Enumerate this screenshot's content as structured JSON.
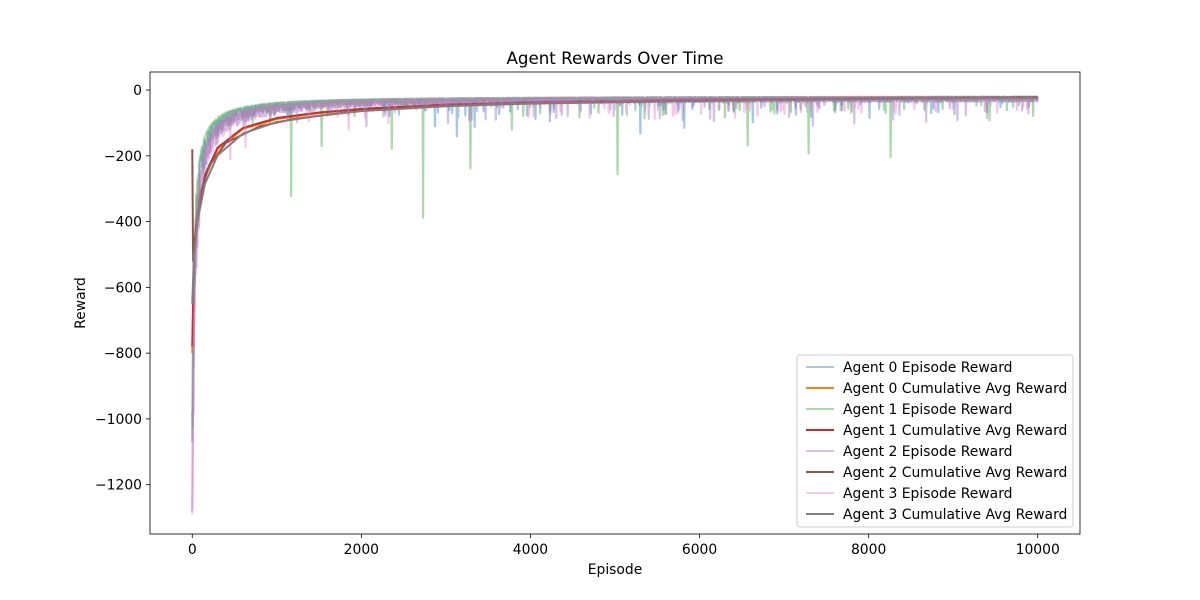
{
  "chart_data": {
    "type": "line",
    "title": "Agent Rewards Over Time",
    "xlabel": "Episode",
    "ylabel": "Reward",
    "xlim": [
      -500,
      10500
    ],
    "ylim": [
      -1350,
      55
    ],
    "xticks": [
      0,
      2000,
      4000,
      6000,
      8000,
      10000
    ],
    "yticks": [
      0,
      -200,
      -400,
      -600,
      -800,
      -1000,
      -1200
    ],
    "xtick_labels": [
      "0",
      "2000",
      "4000",
      "6000",
      "8000",
      "10000"
    ],
    "ytick_labels": [
      "0",
      "−200",
      "−400",
      "−600",
      "−800",
      "−1000",
      "−1200"
    ],
    "legend_position": "lower right",
    "episodes": 10000,
    "series": [
      {
        "name": "Agent 0 Episode Reward",
        "color": "#1f77b4",
        "alpha": 0.4,
        "kind": "episode",
        "start": -1070,
        "plateau": -18,
        "spikes": [
          [
            1830,
            -65
          ],
          [
            2870,
            -110
          ],
          [
            3130,
            -140
          ],
          [
            3340,
            -112
          ],
          [
            4060,
            -88
          ],
          [
            4230,
            -95
          ],
          [
            5300,
            -132
          ],
          [
            5820,
            -115
          ],
          [
            6630,
            -98
          ],
          [
            7140,
            -75
          ],
          [
            8010,
            -85
          ],
          [
            8740,
            -70
          ],
          [
            9560,
            -52
          ]
        ]
      },
      {
        "name": "Agent 0 Cumulative Avg Reward",
        "color": "#ff7f0e",
        "alpha": 1,
        "kind": "cumulative",
        "points": [
          [
            0,
            -800
          ],
          [
            20,
            -520
          ],
          [
            60,
            -390
          ],
          [
            150,
            -265
          ],
          [
            300,
            -180
          ],
          [
            600,
            -118
          ],
          [
            1000,
            -88
          ],
          [
            1500,
            -70
          ],
          [
            2000,
            -58
          ],
          [
            3000,
            -45
          ],
          [
            4000,
            -38
          ],
          [
            6000,
            -30
          ],
          [
            8000,
            -25
          ],
          [
            10000,
            -22
          ]
        ]
      },
      {
        "name": "Agent 1 Episode Reward",
        "color": "#2ca02c",
        "alpha": 0.4,
        "kind": "episode",
        "start": -980,
        "plateau": -18,
        "spikes": [
          [
            1170,
            -322
          ],
          [
            1530,
            -170
          ],
          [
            2360,
            -178
          ],
          [
            2730,
            -388
          ],
          [
            3290,
            -238
          ],
          [
            3780,
            -120
          ],
          [
            5030,
            -256
          ],
          [
            6570,
            -168
          ],
          [
            7290,
            -192
          ],
          [
            8260,
            -204
          ],
          [
            9430,
            -92
          ]
        ]
      },
      {
        "name": "Agent 1 Cumulative Avg Reward",
        "color": "#d62728",
        "alpha": 1,
        "kind": "cumulative",
        "points": [
          [
            0,
            -780
          ],
          [
            20,
            -510
          ],
          [
            60,
            -380
          ],
          [
            150,
            -258
          ],
          [
            300,
            -175
          ],
          [
            600,
            -115
          ],
          [
            1000,
            -85
          ],
          [
            1500,
            -68
          ],
          [
            2000,
            -57
          ],
          [
            3000,
            -44
          ],
          [
            4000,
            -37
          ],
          [
            6000,
            -29
          ],
          [
            8000,
            -24
          ],
          [
            10000,
            -21
          ]
        ]
      },
      {
        "name": "Agent 2 Episode Reward",
        "color": "#9467bd",
        "alpha": 0.4,
        "kind": "episode",
        "start": -1280,
        "plateau": -20,
        "spikes": [
          [
            1240,
            -98
          ],
          [
            2060,
            -110
          ],
          [
            3590,
            -90
          ],
          [
            4440,
            -80
          ],
          [
            5530,
            -85
          ],
          [
            6170,
            -95
          ],
          [
            7340,
            -108
          ],
          [
            7830,
            -102
          ],
          [
            8290,
            -90
          ],
          [
            8680,
            -97
          ],
          [
            9050,
            -92
          ],
          [
            9400,
            -85
          ]
        ]
      },
      {
        "name": "Agent 2 Cumulative Avg Reward",
        "color": "#8c564b",
        "alpha": 1,
        "kind": "cumulative",
        "points": [
          [
            0,
            -180
          ],
          [
            10,
            -520
          ],
          [
            40,
            -420
          ],
          [
            100,
            -310
          ],
          [
            200,
            -230
          ],
          [
            400,
            -160
          ],
          [
            800,
            -110
          ],
          [
            1200,
            -88
          ],
          [
            2000,
            -62
          ],
          [
            3000,
            -48
          ],
          [
            4000,
            -40
          ],
          [
            6000,
            -32
          ],
          [
            8000,
            -27
          ],
          [
            10000,
            -23
          ]
        ]
      },
      {
        "name": "Agent 3 Episode Reward",
        "color": "#e377c2",
        "alpha": 0.4,
        "kind": "episode",
        "start": -1290,
        "plateau": -18,
        "spikes": [
          [
            450,
            -210
          ],
          [
            630,
            -175
          ],
          [
            1850,
            -120
          ],
          [
            2320,
            -100
          ],
          [
            3980,
            -82
          ],
          [
            6020,
            -72
          ],
          [
            8800,
            -65
          ]
        ]
      },
      {
        "name": "Agent 3 Cumulative Avg Reward",
        "color": "#7f7f7f",
        "alpha": 1,
        "kind": "cumulative",
        "points": [
          [
            0,
            -650
          ],
          [
            20,
            -500
          ],
          [
            60,
            -400
          ],
          [
            150,
            -285
          ],
          [
            300,
            -198
          ],
          [
            600,
            -132
          ],
          [
            1000,
            -97
          ],
          [
            1500,
            -78
          ],
          [
            2000,
            -64
          ],
          [
            3000,
            -49
          ],
          [
            4000,
            -41
          ],
          [
            6000,
            -33
          ],
          [
            8000,
            -27
          ],
          [
            10000,
            -23
          ]
        ]
      }
    ]
  }
}
